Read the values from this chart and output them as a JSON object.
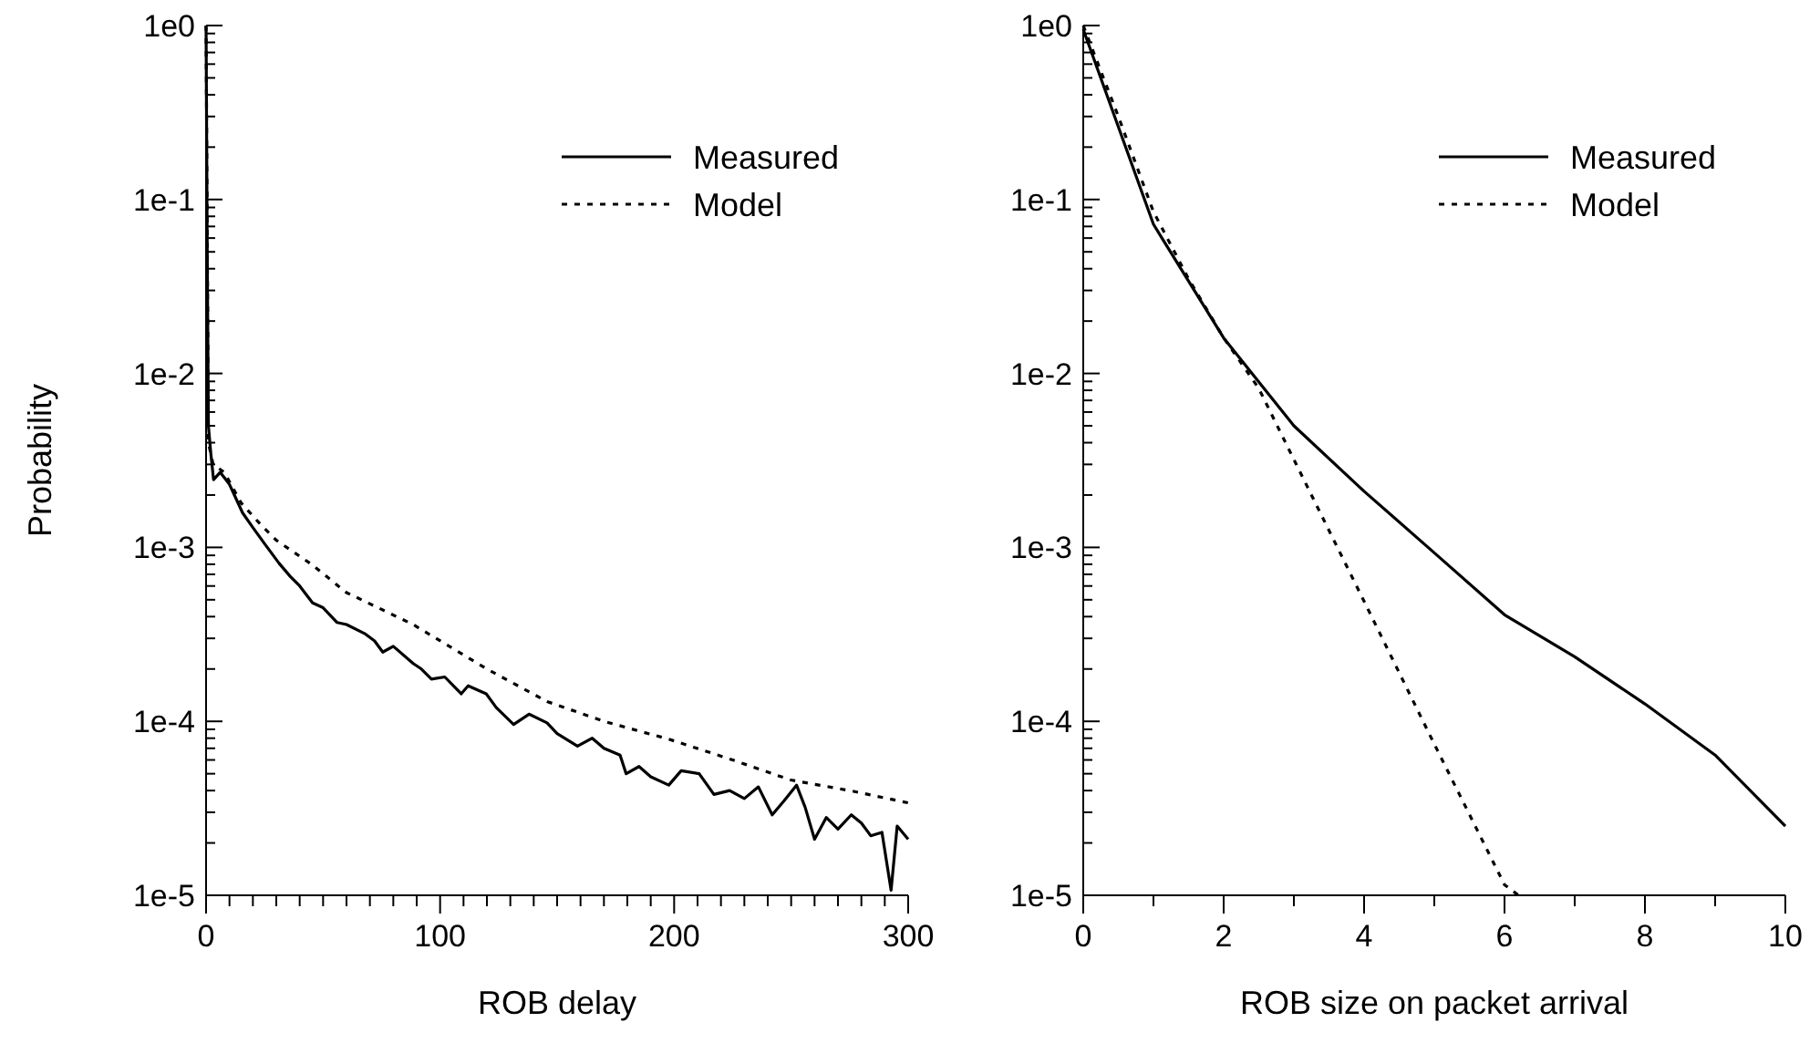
{
  "chart_data": [
    {
      "type": "line",
      "xlabel": "ROB delay",
      "ylabel": "Probability",
      "log": "y",
      "legend": "top right",
      "grid": false,
      "xlim": [
        0,
        300
      ],
      "ylim": [
        1e-05,
        1
      ],
      "xticks": [
        0,
        {
          "value": 10,
          "label": null
        },
        {
          "value": 20,
          "label": null
        },
        {
          "value": 30,
          "label": null
        },
        {
          "value": 40,
          "label": null
        },
        {
          "value": 50,
          "label": null
        },
        {
          "value": 60,
          "label": null
        },
        {
          "value": 70,
          "label": null
        },
        {
          "value": 80,
          "label": null
        },
        {
          "value": 90,
          "label": null
        },
        100,
        {
          "value": 110,
          "label": null
        },
        {
          "value": 120,
          "label": null
        },
        {
          "value": 130,
          "label": null
        },
        {
          "value": 140,
          "label": null
        },
        {
          "value": 150,
          "label": null
        },
        {
          "value": 160,
          "label": null
        },
        {
          "value": 170,
          "label": null
        },
        {
          "value": 180,
          "label": null
        },
        {
          "value": 190,
          "label": null
        },
        200,
        {
          "value": 210,
          "label": null
        },
        {
          "value": 220,
          "label": null
        },
        {
          "value": 230,
          "label": null
        },
        {
          "value": 240,
          "label": null
        },
        {
          "value": 250,
          "label": null
        },
        {
          "value": 260,
          "label": null
        },
        {
          "value": 270,
          "label": null
        },
        {
          "value": 280,
          "label": null
        },
        {
          "value": 290,
          "label": null
        },
        300
      ],
      "yticks": [
        {
          "value": 1e-05,
          "label": "1e-5"
        },
        {
          "value": 0.0001,
          "label": "1e-4"
        },
        {
          "value": 0.001,
          "label": "1e-3"
        },
        {
          "value": 0.01,
          "label": "1e-2"
        },
        {
          "value": 0.1,
          "label": "1e-1"
        },
        {
          "value": 1,
          "label": "1e0"
        }
      ],
      "series": [
        {
          "name": "Measured",
          "color": "#000000",
          "line_style": "solid",
          "x": [
            0,
            0.5,
            1,
            2,
            3.2,
            6,
            8,
            10,
            15.6,
            20,
            25,
            31.2,
            36,
            40,
            45.5,
            50,
            56,
            60,
            67.7,
            72,
            75.5,
            80,
            88.5,
            92,
            96.3,
            102,
            109,
            112,
            119.7,
            124,
            131.4,
            138,
            145.7,
            150,
            158.7,
            165,
            170,
            176.9,
            179.5,
            185,
            190,
            197.7,
            203,
            210.7,
            217,
            223.7,
            230,
            236,
            241.9,
            247,
            252.3,
            256,
            260,
            265,
            270,
            275.7,
            280,
            284,
            288.8,
            292.7,
            295.3,
            300
          ],
          "values": [
            1,
            0.05,
            0.005,
            0.0035,
            0.00245,
            0.0027,
            0.0025,
            0.0023,
            0.00158,
            0.0013,
            0.00105,
            0.00081,
            0.00068,
            0.0006,
            0.00048,
            0.00045,
            0.00037,
            0.00036,
            0.00032,
            0.00029,
            0.00025,
            0.00027,
            0.000215,
            0.0002,
            0.000175,
            0.00018,
            0.000144,
            0.00016,
            0.000144,
            0.00012,
            9.6e-05,
            0.00011,
            9.8e-05,
            8.5e-05,
            7.2e-05,
            8e-05,
            7e-05,
            6.4e-05,
            5e-05,
            5.5e-05,
            4.8e-05,
            4.3e-05,
            5.2e-05,
            5e-05,
            3.8e-05,
            4e-05,
            3.6e-05,
            4.2e-05,
            2.9e-05,
            3.5e-05,
            4.3e-05,
            3.2e-05,
            2.1e-05,
            2.8e-05,
            2.4e-05,
            2.9e-05,
            2.6e-05,
            2.2e-05,
            2.3e-05,
            1.07e-05,
            2.5e-05,
            2.1e-05
          ]
        },
        {
          "name": "Model",
          "color": "#000000",
          "line_style": "dashed",
          "x": [
            0,
            1,
            3,
            7.8,
            15,
            23.4,
            30,
            45,
            60,
            88.5,
            120,
            145.7,
            170,
            197.7,
            225,
            249.8,
            275,
            300
          ],
          "values": [
            1,
            0.004,
            0.003,
            0.0027,
            0.0018,
            0.00135,
            0.0011,
            0.0008,
            0.00055,
            0.00036,
            0.0002,
            0.00013,
            0.0001,
            7.9e-05,
            6e-05,
            4.6e-05,
            4e-05,
            3.4e-05
          ]
        }
      ]
    },
    {
      "type": "line",
      "xlabel": "ROB size on packet arrival",
      "log": "y",
      "legend": "top right",
      "grid": false,
      "xlim": [
        0,
        10
      ],
      "ylim": [
        1e-05,
        1
      ],
      "xticks": [
        0,
        {
          "value": 1,
          "label": null
        },
        2,
        {
          "value": 3,
          "label": null
        },
        4,
        {
          "value": 5,
          "label": null
        },
        6,
        {
          "value": 7,
          "label": null
        },
        8,
        {
          "value": 9,
          "label": null
        },
        10
      ],
      "yticks": [
        {
          "value": 1e-05,
          "label": "1e-5"
        },
        {
          "value": 0.0001,
          "label": "1e-4"
        },
        {
          "value": 0.001,
          "label": "1e-3"
        },
        {
          "value": 0.01,
          "label": "1e-2"
        },
        {
          "value": 0.1,
          "label": "1e-1"
        },
        {
          "value": 1,
          "label": "1e0"
        }
      ],
      "series": [
        {
          "name": "Measured",
          "color": "#000000",
          "line_style": "solid",
          "x": [
            0,
            1,
            2,
            3,
            4,
            5,
            6,
            7,
            8,
            9,
            10
          ],
          "values": [
            0.95,
            0.072,
            0.016,
            0.005,
            0.0021,
            0.00093,
            0.00041,
            0.000235,
            0.000126,
            6.4e-05,
            2.5e-05
          ]
        },
        {
          "name": "Model",
          "color": "#000000",
          "line_style": "dashed",
          "x": [
            0,
            0.5,
            1,
            1.5,
            2,
            2.5,
            3,
            4,
            5,
            6,
            6.2
          ],
          "values": [
            1,
            0.3,
            0.085,
            0.035,
            0.016,
            0.0082,
            0.0032,
            0.00049,
            7.4e-05,
            1.15e-05,
            1e-05
          ]
        }
      ]
    }
  ]
}
